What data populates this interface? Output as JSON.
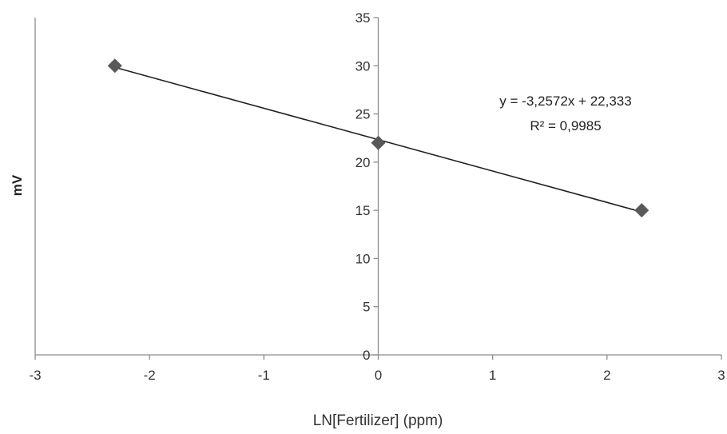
{
  "chart_data": {
    "type": "scatter",
    "title": "",
    "xlabel": "LN[Fertilizer] (ppm)",
    "ylabel": "mV",
    "xlim": [
      -3,
      3
    ],
    "ylim": [
      0,
      35
    ],
    "x_ticks": [
      -3,
      -2,
      -1,
      0,
      1,
      2,
      3
    ],
    "y_ticks": [
      0,
      5,
      10,
      15,
      20,
      25,
      30,
      35
    ],
    "grid": false,
    "legend": "none",
    "series": [
      {
        "points": [
          {
            "x": -2.303,
            "y": 30
          },
          {
            "x": 0,
            "y": 22
          },
          {
            "x": 2.303,
            "y": 15
          }
        ],
        "marker": "diamond",
        "color": "#595959"
      }
    ],
    "trendline": {
      "type": "linear",
      "slope": -3.2572,
      "intercept": 22.333,
      "color": "#222222",
      "equation_label": "y = -3,2572x + 22,333",
      "r2_label": "R² = 0,9985"
    }
  }
}
